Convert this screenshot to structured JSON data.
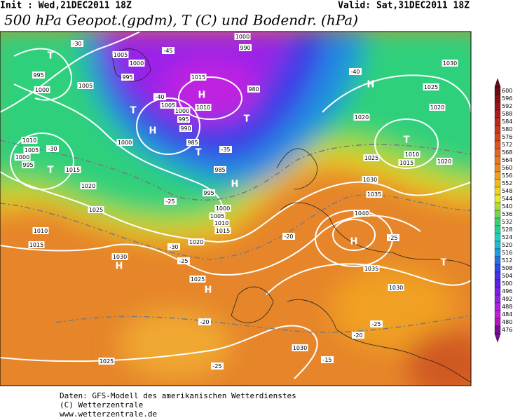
{
  "header": {
    "init": "Init : Wed,21DEC2011 18Z",
    "valid": "Valid: Sat,31DEC2011 18Z",
    "title": "500 hPa Geopot.(gpdm), T (C) und Bodendr. (hPa)"
  },
  "colorbar": {
    "levels": [
      600,
      596,
      592,
      588,
      584,
      580,
      576,
      572,
      568,
      564,
      560,
      556,
      552,
      548,
      544,
      540,
      536,
      532,
      528,
      524,
      520,
      516,
      512,
      508,
      504,
      500,
      496,
      492,
      488,
      484,
      480,
      476
    ]
  },
  "map": {
    "labels": [
      "T",
      "995",
      "1000",
      "1005",
      "-30",
      "1005",
      "1000",
      "995",
      "-45",
      "-40",
      "T",
      "1005",
      "1000",
      "995",
      "990",
      "H",
      "1000",
      "985",
      "T",
      "1015",
      "H",
      "1010",
      "-35",
      "985",
      "1000",
      "990",
      "980",
      "T",
      "H",
      "-40",
      "1020",
      "1025",
      "1020",
      "1030",
      "T",
      "1010",
      "1015",
      "1020",
      "1025",
      "1030",
      "1035",
      "1040",
      "H",
      "-25",
      "1035",
      "1030",
      "T",
      "1010",
      "1005",
      "1000",
      "995",
      "T",
      "-30",
      "1015",
      "1020",
      "1025",
      "1010",
      "1015",
      "1030",
      "H",
      "-30",
      "1020",
      "-25",
      "1025",
      "H",
      "-20",
      "-25",
      "1025",
      "1030",
      "-15",
      "-20",
      "-25",
      "-20",
      "-25",
      "995",
      "1000",
      "1005",
      "1010",
      "1015",
      "H"
    ]
  },
  "footer": {
    "source": "Daten: GFS-Modell des amerikanischen Wetterdienstes",
    "copyright": "(C) Wetterzentrale",
    "url": "www.wetterzentrale.de"
  }
}
